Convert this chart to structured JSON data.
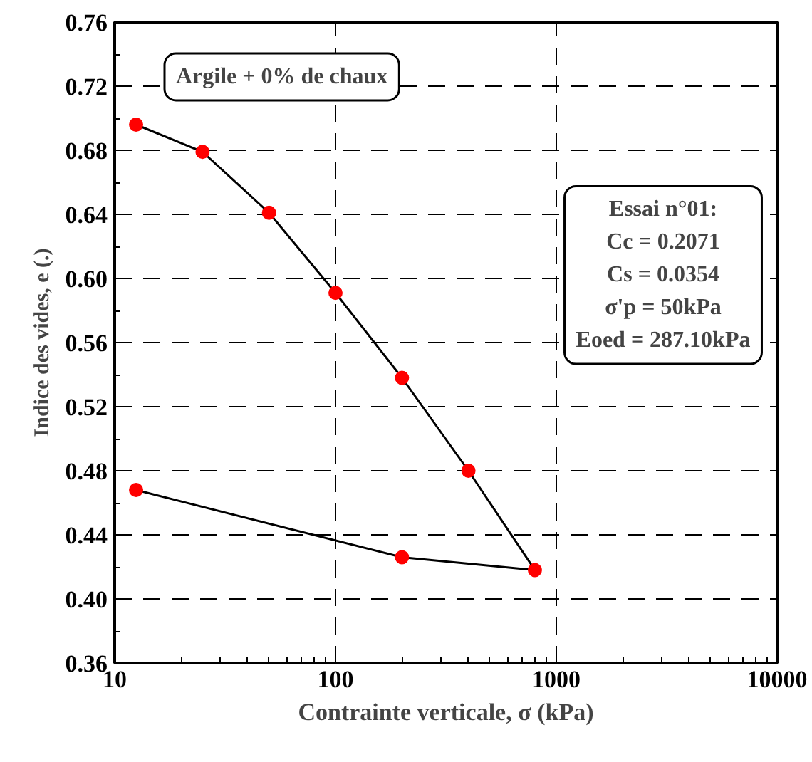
{
  "chart_data": {
    "type": "line",
    "xlabel": "Contrainte verticale, σ (kPa)",
    "ylabel": "Indice des vides, e (.)",
    "series": [
      {
        "color": "#ff0000",
        "x": [
          12.5,
          25,
          50,
          100,
          200,
          400,
          800,
          200,
          12.5
        ],
        "values": [
          0.696,
          0.679,
          0.641,
          0.591,
          0.538,
          0.48,
          0.418,
          0.426,
          0.468
        ]
      }
    ],
    "log": "x",
    "xlim": [
      10,
      10000
    ],
    "xticks": [
      10,
      100,
      1000,
      10000
    ],
    "ylim": [
      0.36,
      0.76
    ],
    "yticks": [
      {
        "value": 0.36,
        "label": "0.36"
      },
      {
        "value": 0.4,
        "label": "0.40"
      },
      {
        "value": 0.44,
        "label": "0.44"
      },
      {
        "value": 0.48,
        "label": "0.48"
      },
      {
        "value": 0.52,
        "label": "0.52"
      },
      {
        "value": 0.56,
        "label": "0.56"
      },
      {
        "value": 0.6,
        "label": "0.60"
      },
      {
        "value": 0.64,
        "label": "0.64"
      },
      {
        "value": 0.68,
        "label": "0.68"
      },
      {
        "value": 0.72,
        "label": "0.72"
      },
      {
        "value": 0.76,
        "label": "0.76"
      }
    ],
    "grid": true,
    "marker": "circle",
    "line_style": "solid",
    "annotations": [
      "Argile + 0% de chaux",
      "Essai n°01:\nCc = 0.2071\nCs = 0.0354\nσ'p = 50kPa\nEoed = 287.10kPa"
    ]
  }
}
